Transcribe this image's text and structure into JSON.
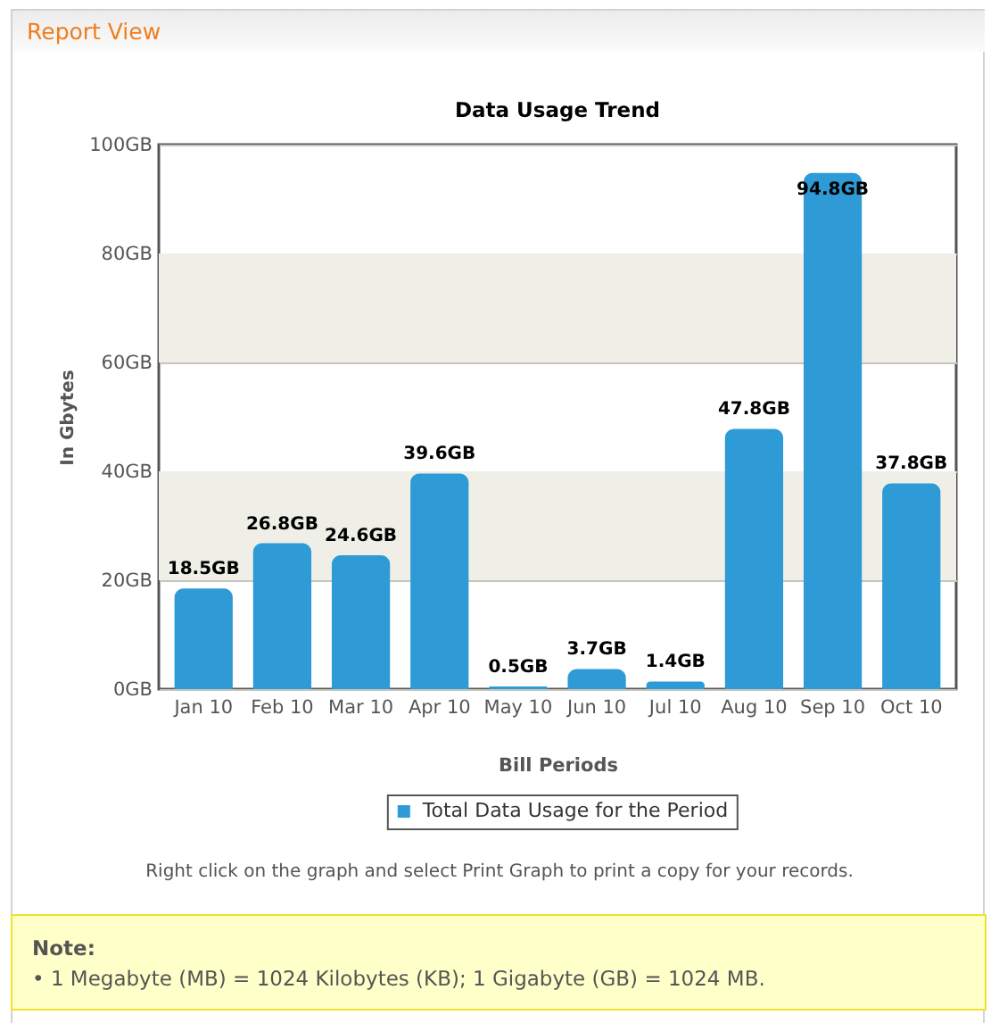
{
  "chart_data": {
    "type": "bar",
    "title": "Data Usage Trend",
    "xlabel": "Bill Periods",
    "ylabel": "In Gbytes",
    "categories": [
      "Jan 10",
      "Feb 10",
      "Mar 10",
      "Apr 10",
      "May 10",
      "Jun 10",
      "Jul 10",
      "Aug 10",
      "Sep 10",
      "Oct 10"
    ],
    "series": [
      {
        "name": "Total Data Usage for the Period",
        "color": "#2e9ad6",
        "values": [
          18.5,
          26.8,
          24.6,
          39.6,
          0.5,
          3.7,
          1.4,
          47.8,
          94.8,
          37.8
        ],
        "value_labels": [
          "18.5GB",
          "26.8GB",
          "24.6GB",
          "39.6GB",
          "0.5GB",
          "3.7GB",
          "1.4GB",
          "47.8GB",
          "94.8GB",
          "37.8GB"
        ]
      }
    ],
    "ylim": [
      0,
      100
    ],
    "yticks": [
      {
        "value": 0,
        "label": "0GB"
      },
      {
        "value": 20,
        "label": "20GB"
      },
      {
        "value": 40,
        "label": "40GB"
      },
      {
        "value": 60,
        "label": "60GB"
      },
      {
        "value": 80,
        "label": "80GB"
      },
      {
        "value": 100,
        "label": "100GB"
      }
    ],
    "grid": "y",
    "legend": "bottom",
    "bands": [
      {
        "axis": "y",
        "from": 20,
        "to": 40,
        "color": "#efefe8"
      },
      {
        "axis": "y",
        "from": 60,
        "to": 80,
        "color": "#efefe8"
      }
    ],
    "annotations": [
      "Report View",
      "Right click on the graph and select Print Graph to print a copy for your records.",
      "Note:",
      "• 1 Megabyte (MB) = 1024 Kilobytes (KB); 1 Gigabyte (GB) = 1024 MB."
    ]
  }
}
